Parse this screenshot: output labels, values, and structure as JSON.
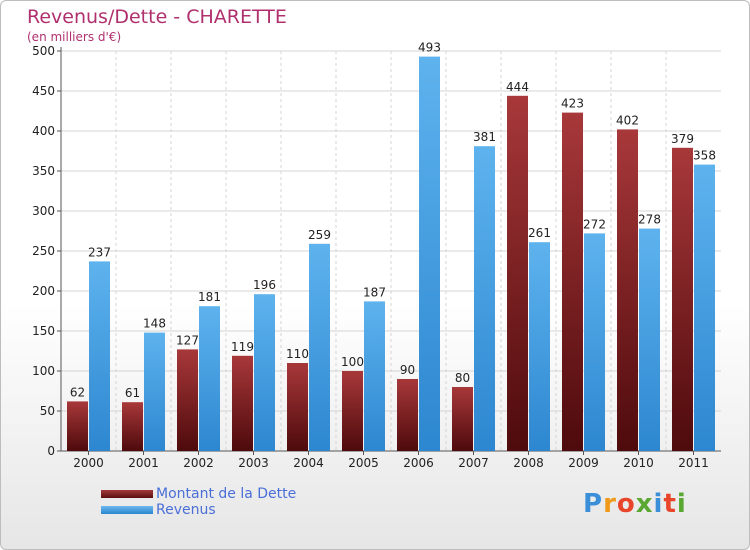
{
  "chart_data": {
    "type": "bar",
    "title": "Revenus/Dette - CHARETTE",
    "subtitle": "(en milliers d'€)",
    "categories": [
      "2000",
      "2001",
      "2002",
      "2003",
      "2004",
      "2005",
      "2006",
      "2007",
      "2008",
      "2009",
      "2010",
      "2011"
    ],
    "series": [
      {
        "name": "Montant de la Dette",
        "color": "#7a1a1c",
        "values": [
          62,
          61,
          127,
          119,
          110,
          100,
          90,
          80,
          444,
          423,
          402,
          379
        ]
      },
      {
        "name": "Revenus",
        "color": "#3d9ce0",
        "values": [
          237,
          148,
          181,
          196,
          259,
          187,
          493,
          381,
          261,
          272,
          278,
          358
        ]
      }
    ],
    "ylim": [
      0,
      500
    ],
    "yticks": [
      0,
      50,
      100,
      150,
      200,
      250,
      300,
      350,
      400,
      450,
      500
    ],
    "xlabel": "",
    "ylabel": "",
    "grid": true,
    "legend": "bottom-left"
  },
  "logo": {
    "text": "Proxiti",
    "colors": [
      "#3b8fd9",
      "#f09a1a",
      "#e8452b",
      "#5aa832",
      "#3b8fd9",
      "#e8452b",
      "#5aa832"
    ]
  }
}
